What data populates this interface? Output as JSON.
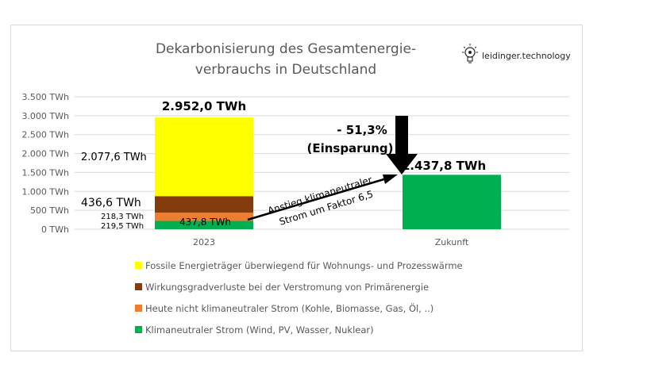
{
  "chart_data": {
    "type": "bar",
    "stacked": true,
    "title_lines": [
      "Dekarbonisierung des Gesamtenergie-",
      "verbrauchs in Deutschland"
    ],
    "categories": [
      "2023",
      "Zukunft"
    ],
    "ylim": [
      0,
      3500
    ],
    "yticks": [
      {
        "value": 0,
        "label": "0 TWh"
      },
      {
        "value": 500,
        "label": "500 TWh"
      },
      {
        "value": 1000,
        "label": "1.000 TWh"
      },
      {
        "value": 1500,
        "label": "1.500 TWh"
      },
      {
        "value": 2000,
        "label": "2.000 TWh"
      },
      {
        "value": 2500,
        "label": "2.500 TWh"
      },
      {
        "value": 3000,
        "label": "3.000 TWh"
      },
      {
        "value": 3500,
        "label": "3.500 TWh"
      }
    ],
    "grid": true,
    "legend_position": "bottom",
    "series": [
      {
        "name": "Klimaneutraler Strom (Wind, PV, Wasser, Nuklear)",
        "color": "#00b050",
        "values": [
          219.5,
          1437.8
        ]
      },
      {
        "name": "Heute nicht klimaneutraler Strom (Kohle, Biomasse, Gas, Öl, ..)",
        "color": "#ed7d31",
        "values": [
          218.3,
          0
        ]
      },
      {
        "name": "Wirkungsgradverluste bei der Verstromung von Primärenergie",
        "color": "#843c0c",
        "values": [
          436.6,
          0
        ]
      },
      {
        "name": "Fossile Energieträger überwiegend für Wohnungs- und Prozesswärme",
        "color": "#ffff00",
        "values": [
          2077.6,
          0
        ]
      }
    ],
    "legend_order": [
      3,
      2,
      1,
      0
    ],
    "labels": {
      "total_2023": "2.952,0 TWh",
      "fossil_2023": "2.077,6 TWh",
      "losses_2023": "436,6 TWh",
      "nonneutral_2023": "218,3 TWh",
      "neutral_2023": "219,5 TWh",
      "electricity_2023": "437,8 TWh",
      "total_future": "1.437,8 TWh"
    },
    "annotations": {
      "savings_line1": "- 51,3%",
      "savings_line2": "(Einsparung)",
      "growth_line1": "Anstieg klimaneutraler",
      "growth_line2": "Strom um Faktor 6,5"
    }
  },
  "brand": {
    "text": "leidinger.technology",
    "icon": "lightbulb-icon"
  }
}
